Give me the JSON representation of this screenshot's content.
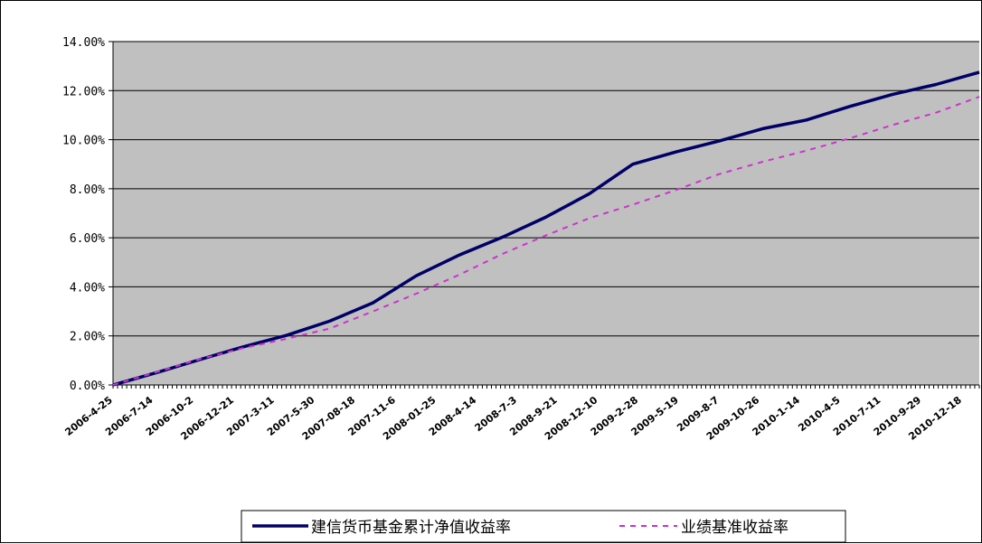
{
  "chart_data": {
    "type": "line",
    "title": "",
    "xlabel": "",
    "ylabel": "",
    "ylim": [
      0,
      14
    ],
    "y_tick_values": [
      0,
      2,
      4,
      6,
      8,
      10,
      12,
      14
    ],
    "y_tick_labels": [
      "0.00%",
      "2.00%",
      "4.00%",
      "6.00%",
      "8.00%",
      "10.00%",
      "12.00%",
      "14.00%"
    ],
    "x_tick_labels": [
      "2006-4-25",
      "2006-7-14",
      "2006-10-2",
      "2006-12-21",
      "2007-3-11",
      "2007-5-30",
      "2007-08-18",
      "2007-11-6",
      "2008-01-25",
      "2008-4-14",
      "2008-7-3",
      "2008-9-21",
      "2008-12-10",
      "2009-2-28",
      "2009-5-19",
      "2009-8-7",
      "2009-10-26",
      "2010-1-14",
      "2010-4-5",
      "2010-7-11",
      "2010-9-29",
      "2010-12-18"
    ],
    "grid": true,
    "background": "#c0c0c0",
    "legend_position": "bottom",
    "series": [
      {
        "name": "建信货币基金累计净值收益率",
        "color": "#000066",
        "style": "solid",
        "values": [
          0,
          0.5,
          1.03,
          1.55,
          2.02,
          2.6,
          3.35,
          4.45,
          5.3,
          6.03,
          6.85,
          7.8,
          9.0,
          9.5,
          9.95,
          10.45,
          10.8,
          11.35,
          11.85,
          12.25,
          12.75
        ]
      },
      {
        "name": "业绩基准收益率",
        "color": "#cc33cc",
        "style": "dashed",
        "values": [
          0,
          0.52,
          1.05,
          1.5,
          1.88,
          2.3,
          3.0,
          3.72,
          4.5,
          5.35,
          6.1,
          6.8,
          7.35,
          7.95,
          8.6,
          9.1,
          9.55,
          10.05,
          10.6,
          11.1,
          11.75
        ]
      }
    ]
  }
}
